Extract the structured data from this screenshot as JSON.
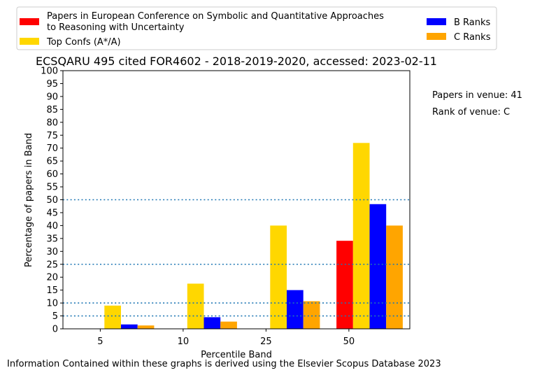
{
  "chart_data": {
    "type": "bar",
    "title": "ECSQARU 495 cited FOR4602 - 2018-2019-2020, accessed: 2023-02-11",
    "xlabel": "Percentile Band",
    "ylabel": "Percentage of papers in Band",
    "categories": [
      "5",
      "10",
      "25",
      "50"
    ],
    "ylim": [
      0,
      100
    ],
    "yticks": [
      "0",
      "5",
      "10",
      "15",
      "20",
      "25",
      "30",
      "35",
      "40",
      "45",
      "50",
      "55",
      "60",
      "65",
      "70",
      "75",
      "80",
      "85",
      "90",
      "95",
      "100"
    ],
    "reference_lines": [
      5,
      10,
      25,
      50
    ],
    "legend_position": "top",
    "series": [
      {
        "name": "Papers in European Conference on Symbolic and Quantitative Approaches to Reasoning with Uncertainty",
        "name_lines": [
          "Papers in European Conference on Symbolic and Quantitative Approaches",
          "to Reasoning with Uncertainty"
        ],
        "color": "#ff0000",
        "values": [
          0,
          0,
          0,
          34.1
        ]
      },
      {
        "name": "Top Confs (A*/A)",
        "color": "#ffd700",
        "values": [
          9,
          17.5,
          40,
          72
        ]
      },
      {
        "name": "B Ranks",
        "color": "#0000ff",
        "values": [
          1.7,
          4.5,
          15,
          48.3
        ]
      },
      {
        "name": "C Ranks",
        "color": "#ffa500",
        "values": [
          1.3,
          2.8,
          10.7,
          40
        ]
      }
    ],
    "annotations": {
      "venue_count": "Papers in venue: 41",
      "venue_rank": "Rank of venue: C"
    },
    "footer": "Information Contained within these graphs is derived using the Elsevier Scopus Database 2023"
  }
}
